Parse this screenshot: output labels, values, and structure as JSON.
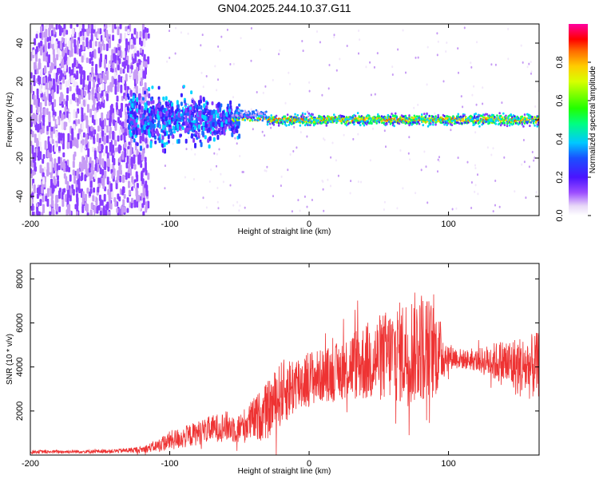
{
  "figure_title": "GN04.2025.244.10.37.G11",
  "chart_data": [
    {
      "type": "heatmap",
      "title": "GN04.2025.244.10.37.G11",
      "xlabel": "Height of straight line (km)",
      "ylabel": "Frequency (Hz)",
      "xlim": [
        -200,
        165
      ],
      "ylim": [
        -50,
        50
      ],
      "xticks": [
        -200,
        -100,
        0,
        100
      ],
      "xtick_labels": [
        "-200",
        "-100",
        "0",
        "100"
      ],
      "yticks": [
        -40,
        -20,
        0,
        20,
        40
      ],
      "ytick_labels": [
        "-40",
        "-20",
        "0",
        "20",
        "40"
      ],
      "colorbar": {
        "label": "Normalized spectral amplitude",
        "range": [
          0,
          1
        ],
        "ticks": [
          0.0,
          0.2,
          0.4,
          0.6,
          0.8
        ],
        "tick_labels": [
          "0.0",
          "0.2",
          "0.4",
          "0.6",
          "0.8"
        ]
      },
      "ridge": {
        "description_note": "dominant frequency near 0 Hz above about -40 km",
        "frequency_hz": 0,
        "strong_from_km": -40
      }
    },
    {
      "type": "line",
      "xlabel": "Height of straight line (km)",
      "ylabel": "SNR (10 * v/v)",
      "xlim": [
        -200,
        165
      ],
      "ylim": [
        0,
        8700
      ],
      "xticks": [
        -200,
        -100,
        0,
        100
      ],
      "xtick_labels": [
        "-200",
        "-100",
        "0",
        "100"
      ],
      "yticks": [
        2000,
        4000,
        6000,
        8000
      ],
      "ytick_labels": [
        "2000",
        "4000",
        "6000",
        "8000"
      ],
      "series": [
        {
          "name": "SNR",
          "color": "#ee3333",
          "x": [
            -200,
            -180,
            -160,
            -140,
            -120,
            -110,
            -100,
            -90,
            -80,
            -70,
            -60,
            -50,
            -40,
            -30,
            -20,
            -10,
            0,
            10,
            20,
            30,
            40,
            50,
            60,
            70,
            80,
            90,
            100,
            110,
            120,
            130,
            140,
            150,
            160,
            165
          ],
          "y": [
            150,
            150,
            160,
            180,
            250,
            400,
            650,
            800,
            1000,
            1200,
            1300,
            1200,
            1600,
            2000,
            2800,
            3200,
            3500,
            3600,
            3800,
            4100,
            4200,
            4400,
            4600,
            4700,
            5000,
            4700,
            4500,
            4350,
            4300,
            4250,
            4200,
            4000,
            4000,
            4100
          ],
          "spread": [
            80,
            80,
            80,
            90,
            150,
            250,
            450,
            500,
            550,
            600,
            700,
            700,
            1000,
            1300,
            1500,
            1400,
            1300,
            1200,
            1300,
            1600,
            1800,
            2000,
            2200,
            2500,
            2600,
            2200,
            600,
            450,
            500,
            800,
            1100,
            1400,
            1500,
            1500
          ]
        }
      ]
    }
  ]
}
